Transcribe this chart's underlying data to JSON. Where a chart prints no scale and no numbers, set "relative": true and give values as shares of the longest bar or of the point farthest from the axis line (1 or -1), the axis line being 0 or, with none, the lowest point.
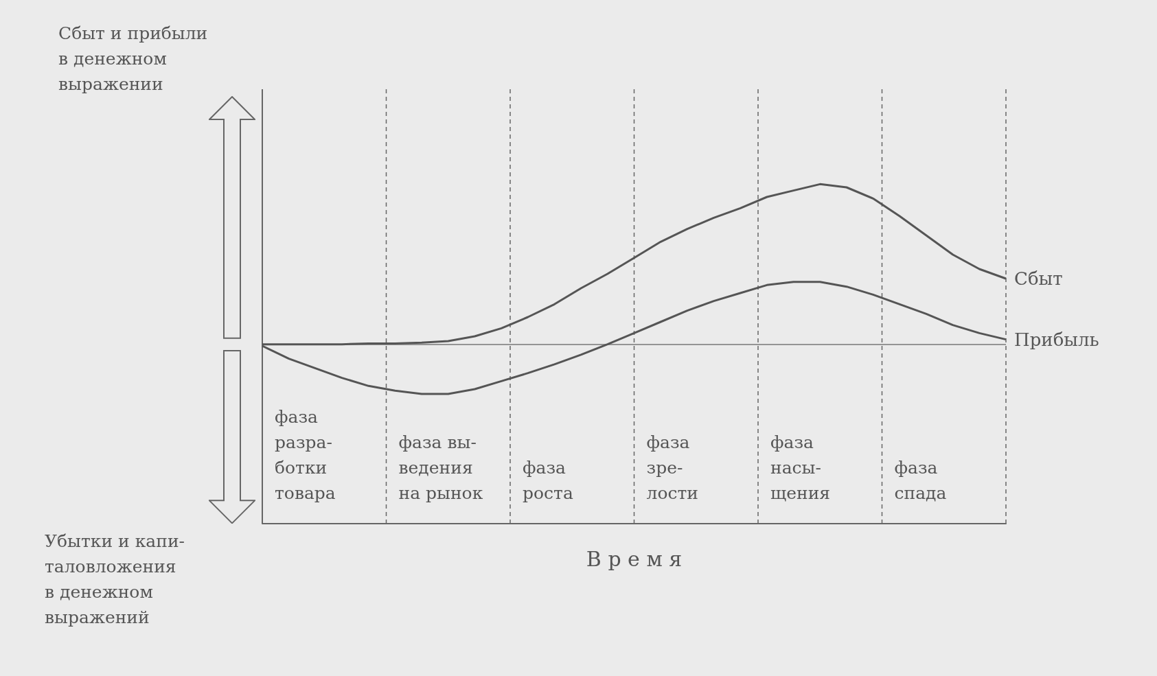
{
  "chart_data": {
    "type": "line",
    "relative": true,
    "annotations": [
      "Сбыт и прибыли\nв денежном\nвыражении",
      "Убытки и капи-\nталовложения\nв денежном\nвыражений",
      "В р е м я",
      "фаза\nразра-\nботки\nтовара",
      "фаза вы-\nведения\nна рынок",
      "фаза\nроста",
      "фаза\nзре-\nлости",
      "фаза\nнасы-\nщения",
      "фаза\nспада"
    ],
    "categories": [
      null,
      null,
      null,
      null,
      null,
      null,
      null,
      null,
      null,
      null,
      null,
      null,
      null,
      null,
      null,
      null,
      null,
      null,
      null,
      null,
      null,
      null,
      null,
      null,
      null,
      null,
      null,
      null,
      null
    ],
    "legend": false,
    "series": [
      {
        "name": "Сбыт",
        "color": "#555555",
        "values": [
          0,
          0,
          0,
          0,
          0.005,
          0.005,
          0.01,
          0.02,
          0.05,
          0.1,
          0.17,
          0.25,
          0.35,
          0.44,
          0.54,
          0.64,
          0.72,
          0.79,
          0.85,
          0.92,
          0.96,
          1,
          0.98,
          0.91,
          0.8,
          0.68,
          0.56,
          0.47,
          0.41
        ]
      },
      {
        "name": "Прибыль",
        "color": "#555555",
        "values": [
          -0.01,
          -0.09,
          -0.15,
          -0.21,
          -0.26,
          -0.29,
          -0.31,
          -0.31,
          -0.28,
          -0.23,
          -0.18,
          -0.125,
          -0.065,
          0,
          0.07,
          0.14,
          0.21,
          0.27,
          0.32,
          0.37,
          0.39,
          0.39,
          0.36,
          0.31,
          0.25,
          0.19,
          0.12,
          0.07,
          0.03
        ]
      }
    ]
  }
}
